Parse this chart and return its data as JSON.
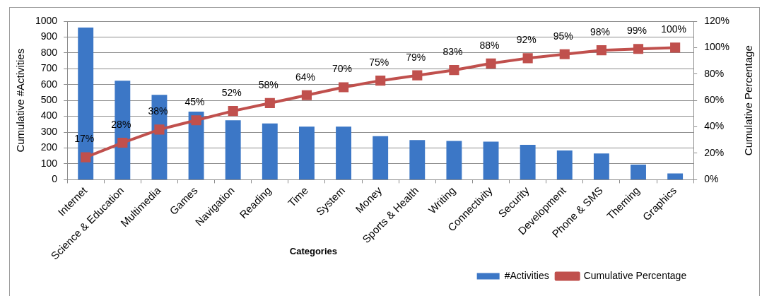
{
  "chart_data": {
    "type": "bar",
    "xlabel": "Categories",
    "ylabel": "Cumulative #Activities",
    "y2label": "Cumulative Percentage",
    "categories": [
      "Internet",
      "Science & Education",
      "Multimedia",
      "Games",
      "Navigation",
      "Reading",
      "Time",
      "System",
      "Money",
      "Sports & Health",
      "Writing",
      "Connectivity",
      "Security",
      "Development",
      "Phone & SMS",
      "Theming",
      "Graphics"
    ],
    "series": [
      {
        "name": "#Activities",
        "color": "#3c77c6",
        "values": [
          960,
          625,
          535,
          430,
          375,
          355,
          335,
          335,
          275,
          250,
          245,
          240,
          220,
          185,
          165,
          95,
          40
        ]
      },
      {
        "name": "Cumulative Percentage",
        "type": "line",
        "axis": "y2",
        "color": "#c0504d",
        "marker": "square",
        "line_style": "solid",
        "values": [
          17,
          28,
          38,
          45,
          52,
          58,
          64,
          70,
          75,
          79,
          83,
          88,
          92,
          95,
          98,
          99,
          100
        ],
        "value_labels": [
          "17%",
          "28%",
          "38%",
          "45%",
          "52%",
          "58%",
          "64%",
          "70%",
          "75%",
          "79%",
          "83%",
          "88%",
          "92%",
          "95%",
          "98%",
          "99%",
          "100%"
        ]
      }
    ],
    "ylim": [
      0,
      1000
    ],
    "yticks": [
      0,
      100,
      200,
      300,
      400,
      500,
      600,
      700,
      800,
      900,
      1000
    ],
    "y2lim": [
      0,
      120
    ],
    "y2ticks": [
      {
        "value": 0,
        "label": "0%"
      },
      {
        "value": 20,
        "label": "20%"
      },
      {
        "value": 40,
        "label": "40%"
      },
      {
        "value": 60,
        "label": "60%"
      },
      {
        "value": 80,
        "label": "80%"
      },
      {
        "value": 100,
        "label": "100%"
      },
      {
        "value": 120,
        "label": "120%"
      }
    ],
    "grid": "y",
    "legend": "bottom right"
  }
}
